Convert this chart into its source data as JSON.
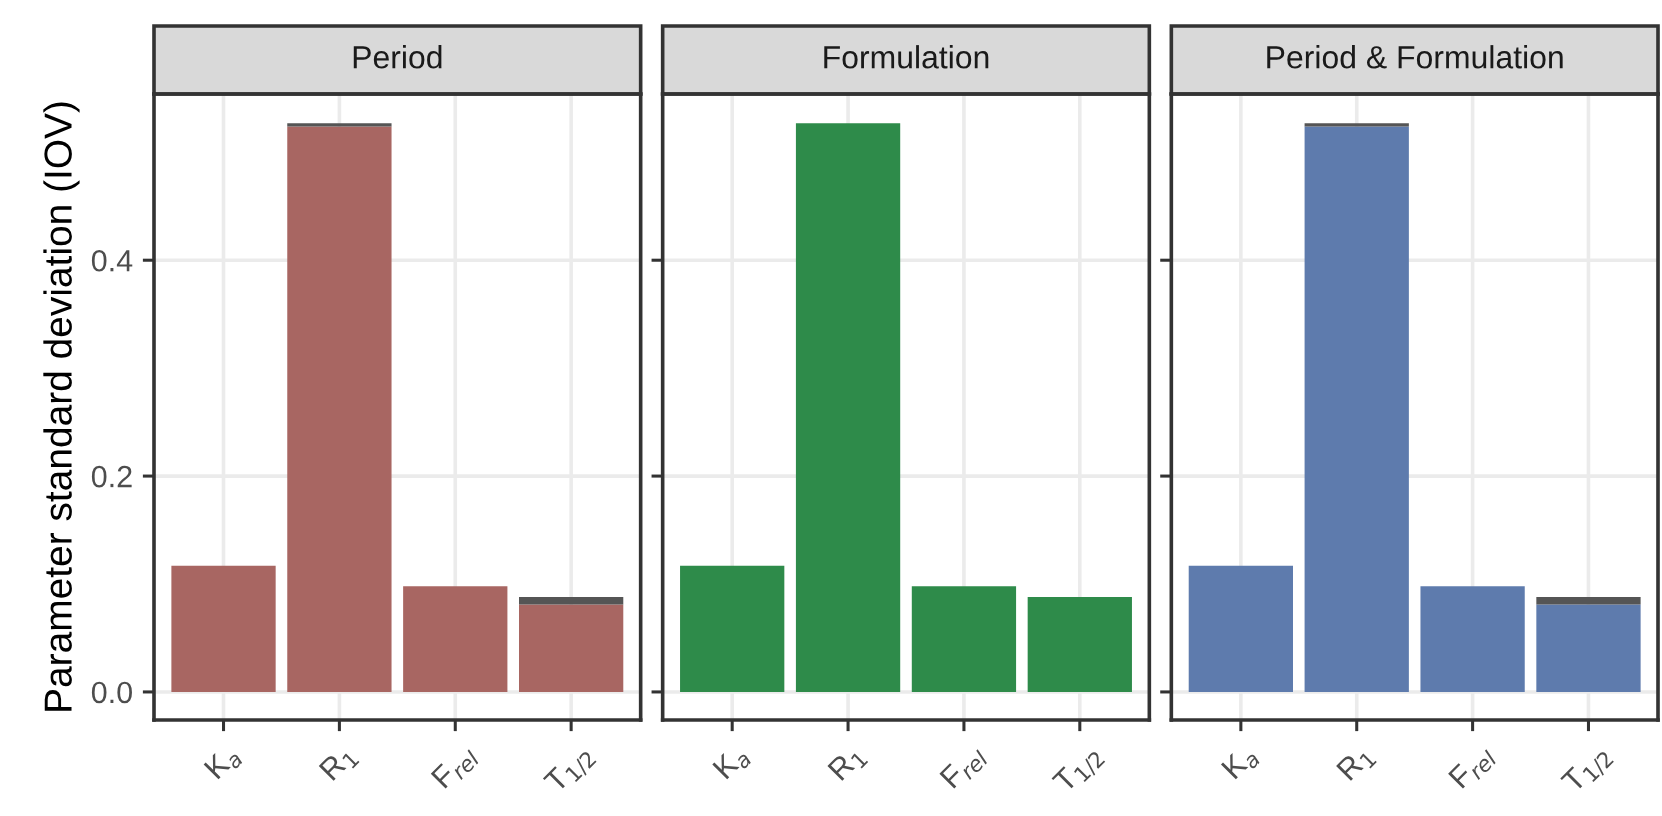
{
  "chart_data": [
    {
      "type": "bar",
      "title": "Period",
      "ylabel": "Parameter standard deviation (IOV)",
      "categories": [
        "K$_{a}$",
        "R$_{1}$",
        "F$_{rel}$",
        "T$_{1/2}$"
      ],
      "stacked": true,
      "ylim": [
        -0.026,
        0.554
      ],
      "yticks": [
        {
          "value": 0,
          "label": "0.0"
        },
        {
          "value": 0.2,
          "label": "0.2"
        },
        {
          "value": 0.4,
          "label": "0.4"
        }
      ],
      "grid": true,
      "series": [
        {
          "color": "#a86662",
          "values": [
            0.117,
            0.524,
            0.098,
            0.081
          ]
        },
        {
          "color": "#555555",
          "values": [
            null,
            0.003,
            null,
            0.007
          ]
        }
      ]
    },
    {
      "type": "bar",
      "title": "Formulation",
      "categories": [
        "K$_{a}$",
        "R$_{1}$",
        "F$_{rel}$",
        "T$_{1/2}$"
      ],
      "stacked": true,
      "ylim": [
        -0.026,
        0.554
      ],
      "yticks": [
        {
          "value": 0,
          "label": null
        },
        {
          "value": 0.2,
          "label": null
        },
        {
          "value": 0.4,
          "label": null
        }
      ],
      "grid": true,
      "tick_labels": "x",
      "series": [
        {
          "color": "#2e8b4a",
          "values": [
            0.117,
            0.527,
            0.098,
            0.088
          ]
        }
      ]
    },
    {
      "type": "bar",
      "title": "Period & Formulation",
      "categories": [
        "K$_{a}$",
        "R$_{1}$",
        "F$_{rel}$",
        "T$_{1/2}$"
      ],
      "stacked": true,
      "ylim": [
        -0.026,
        0.554
      ],
      "yticks": [
        {
          "value": 0,
          "label": null
        },
        {
          "value": 0.2,
          "label": null
        },
        {
          "value": 0.4,
          "label": null
        }
      ],
      "grid": true,
      "tick_labels": "x",
      "series": [
        {
          "color": "#5e7bad",
          "values": [
            0.117,
            0.524,
            0.098,
            0.081
          ]
        },
        {
          "color": "#555555",
          "values": [
            null,
            0.003,
            null,
            0.007
          ]
        }
      ]
    }
  ]
}
